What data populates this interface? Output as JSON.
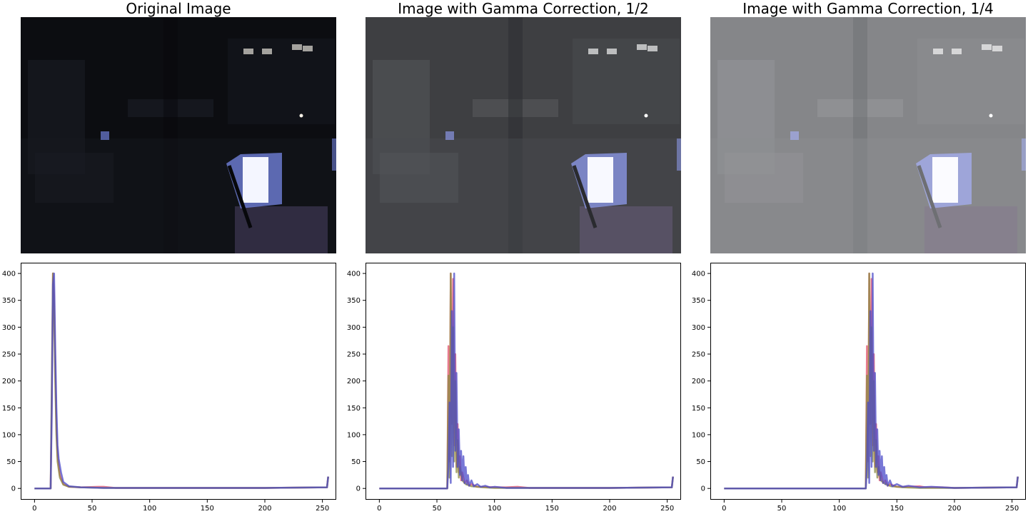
{
  "panels": [
    {
      "title": "Original Image",
      "brightness": "dark"
    },
    {
      "title": "Image with Gamma Correction, 1/2",
      "brightness": "medium"
    },
    {
      "title": "Image with Gamma Correction, 1/4",
      "brightness": "light"
    }
  ],
  "photo_palettes": {
    "dark": {
      "bg": "#0c0d11",
      "mid": "#16181f",
      "wall": "#1a1c24",
      "shadow": "#07080b",
      "screen": "#f4f6ff",
      "screen_glow": "#6f7fd8",
      "desk": "#3b3550",
      "light": "#f5f0e6"
    },
    "medium": {
      "bg": "#3e3f42",
      "mid": "#4a4b4f",
      "wall": "#545559",
      "shadow": "#2a2b2f",
      "screen": "#f8f9ff",
      "screen_glow": "#8a96e4",
      "desk": "#5e566e",
      "light": "#ffffff"
    },
    "light": {
      "bg": "#858689",
      "mid": "#8c8d90",
      "wall": "#939497",
      "shadow": "#6e6f73",
      "screen": "#fbfbff",
      "screen_glow": "#a4adec",
      "desk": "#857e8e",
      "light": "#ffffff"
    }
  },
  "chart_data": [
    {
      "type": "line",
      "title": "",
      "xlim": [
        -12,
        262
      ],
      "ylim": [
        -21,
        420
      ],
      "xticks": [
        0,
        50,
        100,
        150,
        200,
        250
      ],
      "yticks": [
        0,
        50,
        100,
        150,
        200,
        250,
        300,
        350,
        400
      ],
      "series": [
        {
          "color": "#e0506a",
          "points": [
            [
              0,
              0
            ],
            [
              14,
              0
            ],
            [
              15,
              170
            ],
            [
              16,
              400
            ],
            [
              17,
              360
            ],
            [
              18,
              220
            ],
            [
              19,
              110
            ],
            [
              20,
              60
            ],
            [
              22,
              25
            ],
            [
              25,
              8
            ],
            [
              30,
              3
            ],
            [
              40,
              2
            ],
            [
              55,
              3
            ],
            [
              60,
              3
            ],
            [
              70,
              1
            ],
            [
              100,
              1
            ],
            [
              150,
              1
            ],
            [
              200,
              1
            ],
            [
              254,
              2
            ],
            [
              255,
              22
            ]
          ]
        },
        {
          "color": "#8a8a40",
          "points": [
            [
              0,
              0
            ],
            [
              14,
              0
            ],
            [
              15,
              200
            ],
            [
              16,
              400
            ],
            [
              17,
              330
            ],
            [
              18,
              200
            ],
            [
              19,
              100
            ],
            [
              20,
              50
            ],
            [
              22,
              20
            ],
            [
              25,
              7
            ],
            [
              30,
              3
            ],
            [
              40,
              2
            ],
            [
              60,
              1
            ],
            [
              100,
              1
            ],
            [
              150,
              1
            ],
            [
              200,
              1
            ],
            [
              254,
              2
            ],
            [
              255,
              22
            ]
          ]
        },
        {
          "color": "#4a4ac8",
          "points": [
            [
              0,
              0
            ],
            [
              14,
              0
            ],
            [
              15,
              140
            ],
            [
              16,
              380
            ],
            [
              17,
              400
            ],
            [
              18,
              260
            ],
            [
              19,
              150
            ],
            [
              20,
              80
            ],
            [
              21,
              55
            ],
            [
              23,
              30
            ],
            [
              25,
              12
            ],
            [
              30,
              4
            ],
            [
              40,
              2
            ],
            [
              60,
              1
            ],
            [
              100,
              1
            ],
            [
              150,
              1
            ],
            [
              200,
              1
            ],
            [
              254,
              2
            ],
            [
              255,
              22
            ]
          ]
        }
      ]
    },
    {
      "type": "line",
      "title": "",
      "xlim": [
        -12,
        262
      ],
      "ylim": [
        -21,
        420
      ],
      "xticks": [
        0,
        50,
        100,
        150,
        200,
        250
      ],
      "yticks": [
        0,
        50,
        100,
        150,
        200,
        250,
        300,
        350,
        400
      ],
      "series": [
        {
          "color": "#e0506a",
          "points": [
            [
              0,
              0
            ],
            [
              59,
              0
            ],
            [
              60,
              265
            ],
            [
              61,
              50
            ],
            [
              62,
              400
            ],
            [
              63,
              120
            ],
            [
              64,
              390
            ],
            [
              65,
              80
            ],
            [
              66,
              250
            ],
            [
              67,
              40
            ],
            [
              68,
              120
            ],
            [
              69,
              30
            ],
            [
              70,
              60
            ],
            [
              71,
              15
            ],
            [
              72,
              30
            ],
            [
              74,
              10
            ],
            [
              76,
              15
            ],
            [
              78,
              5
            ],
            [
              80,
              8
            ],
            [
              85,
              3
            ],
            [
              90,
              3
            ],
            [
              100,
              2
            ],
            [
              110,
              2
            ],
            [
              120,
              3
            ],
            [
              130,
              1
            ],
            [
              150,
              1
            ],
            [
              200,
              1
            ],
            [
              254,
              2
            ],
            [
              255,
              22
            ]
          ]
        },
        {
          "color": "#8a8a40",
          "points": [
            [
              0,
              0
            ],
            [
              59,
              0
            ],
            [
              60,
              210
            ],
            [
              61,
              20
            ],
            [
              62,
              400
            ],
            [
              63,
              60
            ],
            [
              64,
              300
            ],
            [
              65,
              50
            ],
            [
              66,
              200
            ],
            [
              67,
              30
            ],
            [
              68,
              90
            ],
            [
              69,
              20
            ],
            [
              70,
              40
            ],
            [
              72,
              15
            ],
            [
              75,
              8
            ],
            [
              80,
              4
            ],
            [
              90,
              2
            ],
            [
              100,
              1
            ],
            [
              150,
              1
            ],
            [
              200,
              1
            ],
            [
              254,
              2
            ],
            [
              255,
              22
            ]
          ]
        },
        {
          "color": "#4a4ac8",
          "points": [
            [
              0,
              0
            ],
            [
              59,
              0
            ],
            [
              60,
              40
            ],
            [
              61,
              160
            ],
            [
              62,
              10
            ],
            [
              63,
              330
            ],
            [
              64,
              40
            ],
            [
              65,
              400
            ],
            [
              66,
              70
            ],
            [
              67,
              215
            ],
            [
              68,
              40
            ],
            [
              69,
              110
            ],
            [
              70,
              25
            ],
            [
              71,
              70
            ],
            [
              72,
              15
            ],
            [
              73,
              60
            ],
            [
              74,
              10
            ],
            [
              75,
              40
            ],
            [
              76,
              8
            ],
            [
              77,
              25
            ],
            [
              78,
              5
            ],
            [
              80,
              15
            ],
            [
              82,
              4
            ],
            [
              85,
              8
            ],
            [
              88,
              3
            ],
            [
              92,
              5
            ],
            [
              96,
              2
            ],
            [
              100,
              3
            ],
            [
              110,
              1
            ],
            [
              150,
              1
            ],
            [
              200,
              1
            ],
            [
              254,
              2
            ],
            [
              255,
              22
            ]
          ]
        }
      ]
    },
    {
      "type": "line",
      "title": "",
      "xlim": [
        -12,
        262
      ],
      "ylim": [
        -21,
        420
      ],
      "xticks": [
        0,
        50,
        100,
        150,
        200,
        250
      ],
      "yticks": [
        0,
        50,
        100,
        150,
        200,
        250,
        300,
        350,
        400
      ],
      "series": [
        {
          "color": "#e0506a",
          "points": [
            [
              0,
              0
            ],
            [
              123,
              0
            ],
            [
              124,
              265
            ],
            [
              125,
              50
            ],
            [
              126,
              400
            ],
            [
              127,
              120
            ],
            [
              128,
              390
            ],
            [
              129,
              80
            ],
            [
              130,
              250
            ],
            [
              131,
              40
            ],
            [
              132,
              120
            ],
            [
              133,
              30
            ],
            [
              134,
              60
            ],
            [
              135,
              15
            ],
            [
              136,
              30
            ],
            [
              138,
              10
            ],
            [
              140,
              15
            ],
            [
              142,
              5
            ],
            [
              144,
              8
            ],
            [
              150,
              3
            ],
            [
              160,
              3
            ],
            [
              170,
              4
            ],
            [
              175,
              2
            ],
            [
              190,
              2
            ],
            [
              200,
              1
            ],
            [
              254,
              2
            ],
            [
              255,
              22
            ]
          ]
        },
        {
          "color": "#8a8a40",
          "points": [
            [
              0,
              0
            ],
            [
              123,
              0
            ],
            [
              124,
              210
            ],
            [
              125,
              20
            ],
            [
              126,
              400
            ],
            [
              127,
              60
            ],
            [
              128,
              300
            ],
            [
              129,
              50
            ],
            [
              130,
              200
            ],
            [
              131,
              30
            ],
            [
              132,
              90
            ],
            [
              133,
              20
            ],
            [
              134,
              40
            ],
            [
              136,
              15
            ],
            [
              140,
              8
            ],
            [
              145,
              4
            ],
            [
              155,
              2
            ],
            [
              170,
              1
            ],
            [
              200,
              1
            ],
            [
              254,
              2
            ],
            [
              255,
              22
            ]
          ]
        },
        {
          "color": "#4a4ac8",
          "points": [
            [
              0,
              0
            ],
            [
              123,
              0
            ],
            [
              124,
              40
            ],
            [
              125,
              160
            ],
            [
              126,
              10
            ],
            [
              127,
              330
            ],
            [
              128,
              40
            ],
            [
              129,
              400
            ],
            [
              130,
              70
            ],
            [
              131,
              215
            ],
            [
              132,
              40
            ],
            [
              133,
              110
            ],
            [
              134,
              25
            ],
            [
              135,
              70
            ],
            [
              136,
              15
            ],
            [
              137,
              60
            ],
            [
              138,
              10
            ],
            [
              139,
              40
            ],
            [
              140,
              8
            ],
            [
              141,
              25
            ],
            [
              142,
              5
            ],
            [
              144,
              15
            ],
            [
              146,
              4
            ],
            [
              150,
              8
            ],
            [
              155,
              3
            ],
            [
              160,
              5
            ],
            [
              170,
              2
            ],
            [
              180,
              3
            ],
            [
              200,
              1
            ],
            [
              254,
              2
            ],
            [
              255,
              22
            ]
          ]
        }
      ]
    }
  ]
}
